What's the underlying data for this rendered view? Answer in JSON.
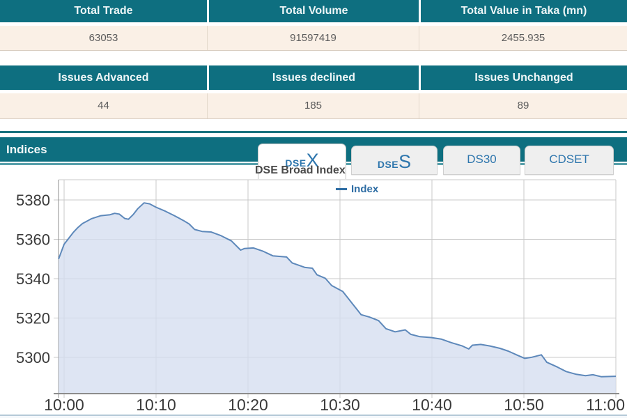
{
  "summary_table_1": {
    "headers": [
      "Total Trade",
      "Total Volume",
      "Total Value in Taka (mn)"
    ],
    "values": [
      "63053",
      "91597419",
      "2455.935"
    ]
  },
  "summary_table_2": {
    "headers": [
      "Issues Advanced",
      "Issues declined",
      "Issues Unchanged"
    ],
    "values": [
      "44",
      "185",
      "89"
    ]
  },
  "indices": {
    "title": "Indices",
    "tabs": {
      "dsex": {
        "base": "DSE",
        "accent": "X"
      },
      "dses": {
        "base": "DSE",
        "accent": "S"
      },
      "ds30": {
        "label": "DS30"
      },
      "cdset": {
        "label": "CDSET"
      }
    }
  },
  "colors": {
    "teal_header": "#0e6f80",
    "teal_light_line": "#57a0ab",
    "cream_row": "#faf0e6",
    "tab_blue": "#2e76ad",
    "legend_blue": "#2e6da4"
  },
  "chart_data": {
    "type": "area",
    "title": "DSE Broad Index",
    "legend": [
      {
        "label": "Index",
        "color": "#2e6da4"
      }
    ],
    "x_unit": "minutes after 10:00",
    "x_ticks": [
      {
        "t": 0,
        "label": "10:00"
      },
      {
        "t": 10,
        "label": "10:10"
      },
      {
        "t": 20,
        "label": "10:20"
      },
      {
        "t": 30,
        "label": "10:30"
      },
      {
        "t": 40,
        "label": "10:40"
      },
      {
        "t": 50,
        "label": "10:50"
      },
      {
        "t": 60,
        "label": "11:00"
      }
    ],
    "y_ticks": [
      5300,
      5320,
      5340,
      5360,
      5380
    ],
    "ylim": [
      5281,
      5390
    ],
    "grid": true,
    "legend_position": "top-center",
    "colors": {
      "line": "#5d88ba",
      "fill": "rgba(213,222,239,0.78)",
      "grid": "#c8c8c8",
      "axis": "#8c8c8c",
      "tick_text": "#3a3a3a"
    },
    "series": [
      {
        "name": "Index",
        "points": [
          [
            -0.6,
            5350
          ],
          [
            0,
            5357.5
          ],
          [
            0.5,
            5360.5
          ],
          [
            1,
            5363.5
          ],
          [
            1.5,
            5366
          ],
          [
            2,
            5368
          ],
          [
            3,
            5370.5
          ],
          [
            4,
            5372
          ],
          [
            5,
            5372.5
          ],
          [
            5.5,
            5373.2
          ],
          [
            6,
            5372.8
          ],
          [
            6.6,
            5370.6
          ],
          [
            7,
            5370.2
          ],
          [
            7.5,
            5372.5
          ],
          [
            8,
            5375.5
          ],
          [
            8.7,
            5378.5
          ],
          [
            9.3,
            5378
          ],
          [
            10,
            5376.3
          ],
          [
            11,
            5374.3
          ],
          [
            12,
            5372
          ],
          [
            13,
            5369.5
          ],
          [
            13.6,
            5367.8
          ],
          [
            14.2,
            5365
          ],
          [
            15,
            5364
          ],
          [
            16,
            5363.7
          ],
          [
            17,
            5362
          ],
          [
            18.2,
            5359.2
          ],
          [
            19.2,
            5354.5
          ],
          [
            19.6,
            5355.3
          ],
          [
            20.6,
            5355.6
          ],
          [
            21.6,
            5354
          ],
          [
            22.7,
            5351.6
          ],
          [
            24.2,
            5351
          ],
          [
            24.8,
            5348
          ],
          [
            26.2,
            5345.7
          ],
          [
            27,
            5345.3
          ],
          [
            27.5,
            5342
          ],
          [
            28.4,
            5340.2
          ],
          [
            29.1,
            5336.5
          ],
          [
            30.3,
            5333.5
          ],
          [
            31.4,
            5327
          ],
          [
            32.3,
            5321.7
          ],
          [
            33.2,
            5320.5
          ],
          [
            34.2,
            5318.7
          ],
          [
            35,
            5314.6
          ],
          [
            36,
            5313
          ],
          [
            37.1,
            5314
          ],
          [
            37.7,
            5311.7
          ],
          [
            38.7,
            5310.5
          ],
          [
            39.9,
            5310.1
          ],
          [
            41,
            5309.3
          ],
          [
            42.1,
            5307.5
          ],
          [
            43.3,
            5305.8
          ],
          [
            44,
            5304.3
          ],
          [
            44.4,
            5306.2
          ],
          [
            45.3,
            5306.6
          ],
          [
            46.3,
            5305.8
          ],
          [
            47.4,
            5304.6
          ],
          [
            48.3,
            5303.2
          ],
          [
            49.3,
            5301.1
          ],
          [
            50.1,
            5299.5
          ],
          [
            50.9,
            5300.1
          ],
          [
            51.9,
            5301.3
          ],
          [
            52.5,
            5297.5
          ],
          [
            53.6,
            5295.2
          ],
          [
            54.6,
            5292.8
          ],
          [
            55.7,
            5291.4
          ],
          [
            56.7,
            5290.7
          ],
          [
            57.5,
            5291.2
          ],
          [
            58.4,
            5290.2
          ],
          [
            60,
            5290.4
          ]
        ]
      }
    ]
  }
}
